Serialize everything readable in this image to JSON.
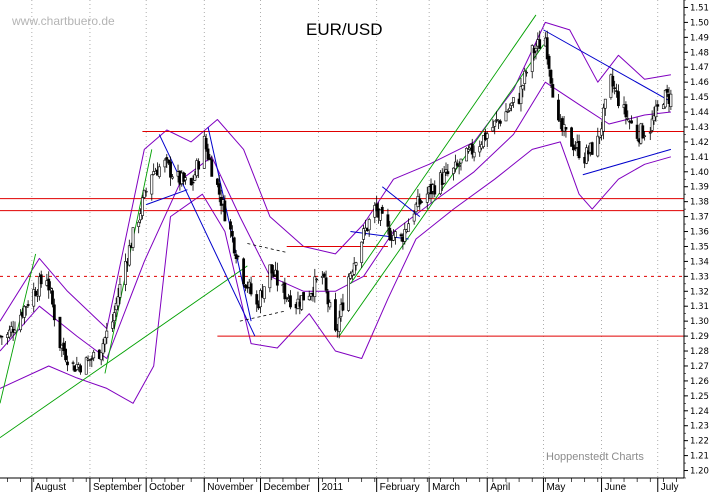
{
  "watermark": "www.chartbuero.de",
  "credit": "Hoppenstedt Charts",
  "chart_data": {
    "type": "candlestick",
    "title": "EUR/USD",
    "xlabel": "",
    "ylabel": "",
    "ylim": [
      1.195,
      1.515
    ],
    "y_ticks": [
      1.2,
      1.21,
      1.22,
      1.23,
      1.24,
      1.25,
      1.26,
      1.27,
      1.28,
      1.29,
      1.3,
      1.31,
      1.32,
      1.33,
      1.34,
      1.35,
      1.36,
      1.37,
      1.38,
      1.39,
      1.4,
      1.41,
      1.42,
      1.43,
      1.44,
      1.45,
      1.46,
      1.47,
      1.48,
      1.49,
      1.5,
      1.51
    ],
    "x_months": [
      "August",
      "September",
      "October",
      "November",
      "December",
      "2011",
      "February",
      "March",
      "April",
      "May",
      "June",
      "July"
    ],
    "y_axis_position": "right",
    "grid": "vertical dotted at month starts",
    "colors": {
      "price": "#000000",
      "bands": "#8000c0",
      "channel": "#00a000",
      "trend": "#0000cc",
      "level": "#e00000"
    },
    "weekly_close_trace": [
      [
        "2010-07-19",
        1.29
      ],
      [
        "2010-07-26",
        1.305
      ],
      [
        "2010-08-02",
        1.32
      ],
      [
        "2010-08-09",
        1.33
      ],
      [
        "2010-08-16",
        1.285
      ],
      [
        "2010-08-23",
        1.27
      ],
      [
        "2010-08-30",
        1.272
      ],
      [
        "2010-09-06",
        1.28
      ],
      [
        "2010-09-13",
        1.3
      ],
      [
        "2010-09-20",
        1.34
      ],
      [
        "2010-09-27",
        1.37
      ],
      [
        "2010-10-04",
        1.4
      ],
      [
        "2010-10-11",
        1.405
      ],
      [
        "2010-10-18",
        1.395
      ],
      [
        "2010-10-25",
        1.39
      ],
      [
        "2010-11-01",
        1.42
      ],
      [
        "2010-11-08",
        1.39
      ],
      [
        "2010-11-15",
        1.36
      ],
      [
        "2010-11-22",
        1.33
      ],
      [
        "2010-11-29",
        1.31
      ],
      [
        "2010-12-06",
        1.335
      ],
      [
        "2010-12-13",
        1.32
      ],
      [
        "2010-12-20",
        1.312
      ],
      [
        "2010-12-27",
        1.32
      ],
      [
        "2011-01-03",
        1.33
      ],
      [
        "2011-01-10",
        1.29
      ],
      [
        "2011-01-17",
        1.33
      ],
      [
        "2011-01-24",
        1.355
      ],
      [
        "2011-01-31",
        1.375
      ],
      [
        "2011-02-07",
        1.36
      ],
      [
        "2011-02-14",
        1.355
      ],
      [
        "2011-02-21",
        1.375
      ],
      [
        "2011-02-28",
        1.385
      ],
      [
        "2011-03-07",
        1.395
      ],
      [
        "2011-03-14",
        1.4
      ],
      [
        "2011-03-21",
        1.41
      ],
      [
        "2011-03-28",
        1.42
      ],
      [
        "2011-04-04",
        1.43
      ],
      [
        "2011-04-11",
        1.44
      ],
      [
        "2011-04-18",
        1.45
      ],
      [
        "2011-04-25",
        1.48
      ],
      [
        "2011-05-02",
        1.49
      ],
      [
        "2011-05-09",
        1.43
      ],
      [
        "2011-05-16",
        1.42
      ],
      [
        "2011-05-23",
        1.41
      ],
      [
        "2011-05-30",
        1.42
      ],
      [
        "2011-06-06",
        1.46
      ],
      [
        "2011-06-13",
        1.44
      ],
      [
        "2011-06-20",
        1.425
      ],
      [
        "2011-06-27",
        1.43
      ],
      [
        "2011-07-04",
        1.45
      ]
    ],
    "horizontal_levels": [
      {
        "y": 1.427,
        "from": "2010-09-29",
        "to": "2011-07-15",
        "style": "solid"
      },
      {
        "y": 1.382,
        "from": "2010-07-15",
        "to": "2011-07-15",
        "style": "solid"
      },
      {
        "y": 1.374,
        "from": "2010-07-15",
        "to": "2011-07-15",
        "style": "solid"
      },
      {
        "y": 1.35,
        "from": "2010-12-15",
        "to": "2011-02-07",
        "style": "solid"
      },
      {
        "y": 1.33,
        "from": "2010-07-15",
        "to": "2011-07-15",
        "style": "dashed"
      },
      {
        "y": 1.29,
        "from": "2010-11-08",
        "to": "2011-07-15",
        "style": "solid"
      }
    ],
    "green_lines": [
      {
        "from": [
          "2010-07-15",
          1.222
        ],
        "to": [
          "2010-11-24",
          1.337
        ]
      },
      {
        "from": [
          "2010-07-15",
          1.245
        ],
        "to": [
          "2010-08-03",
          1.345
        ]
      },
      {
        "from": [
          "2010-09-09",
          1.265
        ],
        "to": [
          "2010-10-04",
          1.415
        ]
      },
      {
        "from": [
          "2011-01-12",
          1.29
        ],
        "to": [
          "2011-05-01",
          1.485
        ]
      },
      {
        "from": [
          "2011-01-18",
          1.325
        ],
        "to": [
          "2011-04-27",
          1.505
        ]
      }
    ],
    "blue_lines": [
      {
        "from": [
          "2010-10-08",
          1.425
        ],
        "to": [
          "2010-11-28",
          1.29
        ]
      },
      {
        "from": [
          "2010-11-03",
          1.43
        ],
        "to": [
          "2010-11-26",
          1.3
        ]
      },
      {
        "from": [
          "2010-10-01",
          1.378
        ],
        "to": [
          "2010-10-23",
          1.388
        ]
      },
      {
        "from": [
          "2011-01-18",
          1.36
        ],
        "to": [
          "2011-02-18",
          1.355
        ]
      },
      {
        "from": [
          "2011-02-04",
          1.39
        ],
        "to": [
          "2011-02-24",
          1.37
        ]
      },
      {
        "from": [
          "2011-05-01",
          1.495
        ],
        "to": [
          "2011-07-08",
          1.447
        ]
      },
      {
        "from": [
          "2011-05-22",
          1.398
        ],
        "to": [
          "2011-07-08",
          1.415
        ]
      }
    ],
    "black_dashed_lines": [
      {
        "from": [
          "2010-11-20",
          1.3
        ],
        "to": [
          "2010-12-15",
          1.307
        ]
      },
      {
        "from": [
          "2010-11-24",
          1.352
        ],
        "to": [
          "2010-12-15",
          1.346
        ]
      }
    ],
    "bollinger_upper": [
      [
        "2010-07-15",
        1.3
      ],
      [
        "2010-08-05",
        1.342
      ],
      [
        "2010-08-20",
        1.32
      ],
      [
        "2010-09-10",
        1.295
      ],
      [
        "2010-09-30",
        1.415
      ],
      [
        "2010-10-12",
        1.428
      ],
      [
        "2010-10-25",
        1.42
      ],
      [
        "2010-11-08",
        1.435
      ],
      [
        "2010-11-22",
        1.415
      ],
      [
        "2010-12-06",
        1.37
      ],
      [
        "2010-12-24",
        1.35
      ],
      [
        "2011-01-10",
        1.345
      ],
      [
        "2011-01-25",
        1.365
      ],
      [
        "2011-02-10",
        1.395
      ],
      [
        "2011-03-01",
        1.405
      ],
      [
        "2011-03-25",
        1.42
      ],
      [
        "2011-04-15",
        1.455
      ],
      [
        "2011-05-02",
        1.5
      ],
      [
        "2011-05-15",
        1.495
      ],
      [
        "2011-05-30",
        1.46
      ],
      [
        "2011-06-10",
        1.478
      ],
      [
        "2011-06-24",
        1.462
      ],
      [
        "2011-07-08",
        1.465
      ]
    ],
    "bollinger_lower": [
      [
        "2010-07-15",
        1.255
      ],
      [
        "2010-08-10",
        1.27
      ],
      [
        "2010-08-25",
        1.262
      ],
      [
        "2010-09-10",
        1.255
      ],
      [
        "2010-09-24",
        1.245
      ],
      [
        "2010-10-05",
        1.27
      ],
      [
        "2010-10-14",
        1.37
      ],
      [
        "2010-10-31",
        1.385
      ],
      [
        "2010-11-12",
        1.36
      ],
      [
        "2010-11-26",
        1.285
      ],
      [
        "2010-12-10",
        1.282
      ],
      [
        "2010-12-27",
        1.305
      ],
      [
        "2011-01-10",
        1.28
      ],
      [
        "2011-01-24",
        1.275
      ],
      [
        "2011-02-07",
        1.315
      ],
      [
        "2011-02-22",
        1.355
      ],
      [
        "2011-03-14",
        1.375
      ],
      [
        "2011-04-05",
        1.395
      ],
      [
        "2011-04-25",
        1.415
      ],
      [
        "2011-05-10",
        1.42
      ],
      [
        "2011-05-20",
        1.385
      ],
      [
        "2011-05-27",
        1.375
      ],
      [
        "2011-06-10",
        1.395
      ],
      [
        "2011-06-24",
        1.405
      ],
      [
        "2011-07-08",
        1.41
      ]
    ],
    "bollinger_middle": [
      [
        "2010-07-15",
        1.28
      ],
      [
        "2010-08-05",
        1.31
      ],
      [
        "2010-08-25",
        1.29
      ],
      [
        "2010-09-10",
        1.275
      ],
      [
        "2010-09-30",
        1.34
      ],
      [
        "2010-10-20",
        1.395
      ],
      [
        "2010-11-05",
        1.41
      ],
      [
        "2010-11-20",
        1.37
      ],
      [
        "2010-12-06",
        1.33
      ],
      [
        "2010-12-24",
        1.32
      ],
      [
        "2011-01-10",
        1.32
      ],
      [
        "2011-01-25",
        1.33
      ],
      [
        "2011-02-10",
        1.36
      ],
      [
        "2011-03-01",
        1.378
      ],
      [
        "2011-03-25",
        1.4
      ],
      [
        "2011-04-15",
        1.425
      ],
      [
        "2011-05-02",
        1.46
      ],
      [
        "2011-05-20",
        1.445
      ],
      [
        "2011-06-05",
        1.432
      ],
      [
        "2011-06-24",
        1.438
      ],
      [
        "2011-07-08",
        1.44
      ]
    ]
  }
}
